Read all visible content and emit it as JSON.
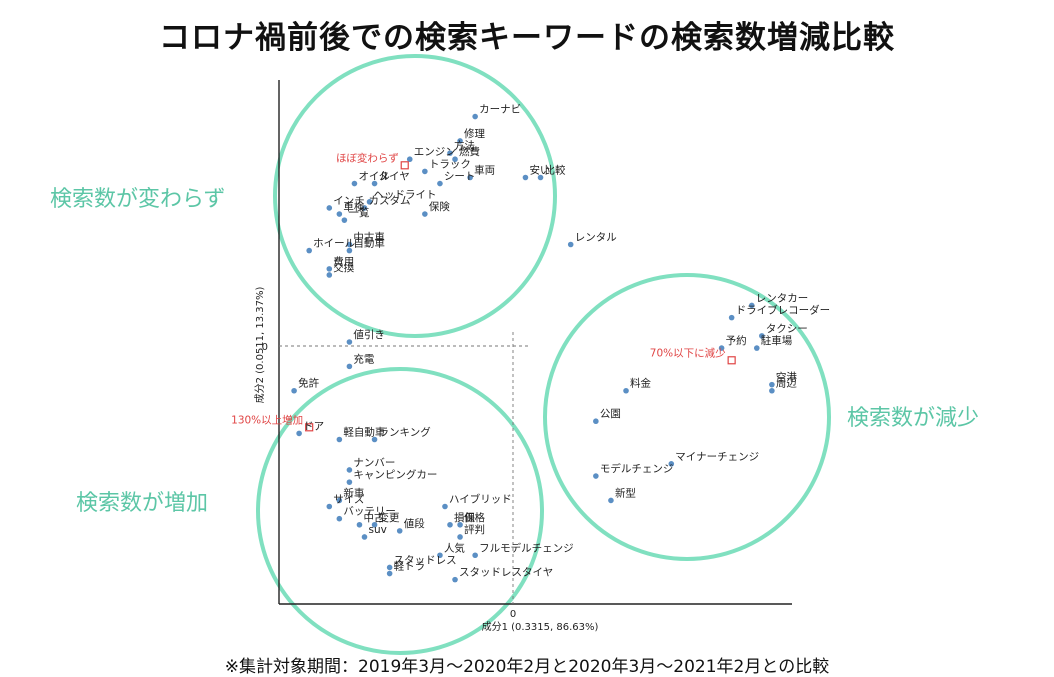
{
  "title": "コロナ禍前後での検索キーワードの検索数増減比較",
  "footnote": "※集計対象期間：2019年3月～2020年2月と2020年3月～2021年2月との比較",
  "chart_data": {
    "type": "scatter",
    "xlabel": "成分1 (0.3315, 86.63%)",
    "ylabel": "成分2 (0.0511, 13.37%)",
    "x_zero_label": "0",
    "y_zero_label": "0",
    "xlim": [
      -0.47,
      0.55
    ],
    "ylim": [
      -0.43,
      0.43
    ],
    "grid": false,
    "points": [
      {
        "label": "カーナビ",
        "x": -0.08,
        "y": 0.37
      },
      {
        "label": "修理",
        "x": -0.11,
        "y": 0.33
      },
      {
        "label": "方法",
        "x": -0.13,
        "y": 0.31
      },
      {
        "label": "燃費",
        "x": -0.12,
        "y": 0.3
      },
      {
        "label": "エンジン",
        "x": -0.21,
        "y": 0.3
      },
      {
        "label": "ほぼ変わらず",
        "x": -0.22,
        "y": 0.29
      },
      {
        "label": "トラック",
        "x": -0.18,
        "y": 0.28
      },
      {
        "label": "車両",
        "x": -0.09,
        "y": 0.27
      },
      {
        "label": "安い",
        "x": 0.02,
        "y": 0.27
      },
      {
        "label": "比較",
        "x": 0.05,
        "y": 0.27
      },
      {
        "label": "オイル",
        "x": -0.32,
        "y": 0.26
      },
      {
        "label": "タイヤ",
        "x": -0.28,
        "y": 0.26
      },
      {
        "label": "シート",
        "x": -0.15,
        "y": 0.26
      },
      {
        "label": "ヘッドライト",
        "x": -0.29,
        "y": 0.23
      },
      {
        "label": "インチ",
        "x": -0.37,
        "y": 0.22
      },
      {
        "label": "カスタム",
        "x": -0.3,
        "y": 0.22
      },
      {
        "label": "保険",
        "x": -0.18,
        "y": 0.21
      },
      {
        "label": "車検",
        "x": -0.35,
        "y": 0.21
      },
      {
        "label": "一覧",
        "x": -0.34,
        "y": 0.2
      },
      {
        "label": "中古車",
        "x": -0.33,
        "y": 0.16
      },
      {
        "label": "レンタル",
        "x": 0.11,
        "y": 0.16
      },
      {
        "label": "ホイール",
        "x": -0.41,
        "y": 0.15
      },
      {
        "label": "自動車",
        "x": -0.33,
        "y": 0.15
      },
      {
        "label": "費用",
        "x": -0.37,
        "y": 0.12
      },
      {
        "label": "交換",
        "x": -0.37,
        "y": 0.11
      },
      {
        "label": "レンタカー",
        "x": 0.47,
        "y": 0.06
      },
      {
        "label": "ドライブレコーダー",
        "x": 0.43,
        "y": 0.04
      },
      {
        "label": "タクシー",
        "x": 0.49,
        "y": 0.01
      },
      {
        "label": "予約",
        "x": 0.41,
        "y": -0.01
      },
      {
        "label": "駐車場",
        "x": 0.48,
        "y": -0.01
      },
      {
        "label": "70%以下に減少",
        "x": 0.43,
        "y": -0.03
      },
      {
        "label": "空港",
        "x": 0.51,
        "y": -0.07
      },
      {
        "label": "周辺",
        "x": 0.51,
        "y": -0.08
      },
      {
        "label": "料金",
        "x": 0.22,
        "y": -0.08
      },
      {
        "label": "公園",
        "x": 0.16,
        "y": -0.13
      },
      {
        "label": "値引き",
        "x": -0.33,
        "y": 0.0
      },
      {
        "label": "充電",
        "x": -0.33,
        "y": -0.04
      },
      {
        "label": "免許",
        "x": -0.44,
        "y": -0.08
      },
      {
        "label": "130%以上増加",
        "x": -0.41,
        "y": -0.14
      },
      {
        "label": "ドア",
        "x": -0.43,
        "y": -0.15
      },
      {
        "label": "ランキング",
        "x": -0.28,
        "y": -0.16
      },
      {
        "label": "軽自動車",
        "x": -0.35,
        "y": -0.16
      },
      {
        "label": "ナンバー",
        "x": -0.33,
        "y": -0.21
      },
      {
        "label": "キャンピングカー",
        "x": -0.33,
        "y": -0.23
      },
      {
        "label": "新車",
        "x": -0.35,
        "y": -0.26
      },
      {
        "label": "サイズ",
        "x": -0.37,
        "y": -0.27
      },
      {
        "label": "ハイブリッド",
        "x": -0.14,
        "y": -0.27
      },
      {
        "label": "バッテリー",
        "x": -0.35,
        "y": -0.29
      },
      {
        "label": "中古",
        "x": -0.31,
        "y": -0.3
      },
      {
        "label": "変更",
        "x": -0.28,
        "y": -0.3
      },
      {
        "label": "損保",
        "x": -0.13,
        "y": -0.3
      },
      {
        "label": "価格",
        "x": -0.11,
        "y": -0.3
      },
      {
        "label": "値段",
        "x": -0.23,
        "y": -0.31
      },
      {
        "label": "評判",
        "x": -0.11,
        "y": -0.32
      },
      {
        "label": "suv",
        "x": -0.3,
        "y": -0.32
      },
      {
        "label": "人気",
        "x": -0.15,
        "y": -0.35
      },
      {
        "label": "フルモデルチェンジ",
        "x": -0.08,
        "y": -0.35
      },
      {
        "label": "スタッドレス",
        "x": -0.25,
        "y": -0.37
      },
      {
        "label": "軽トラ",
        "x": -0.25,
        "y": -0.38
      },
      {
        "label": "スタッドレスタイヤ",
        "x": -0.12,
        "y": -0.39
      },
      {
        "label": "マイナーチェンジ",
        "x": 0.31,
        "y": -0.2
      },
      {
        "label": "モデルチェンジ",
        "x": 0.16,
        "y": -0.22
      },
      {
        "label": "新型",
        "x": 0.19,
        "y": -0.26
      }
    ],
    "groups": [
      {
        "label": "検索数が変わらず"
      },
      {
        "label": "検索数が減少"
      },
      {
        "label": "検索数が増加"
      }
    ],
    "colors": {
      "point": "#5b8fc4",
      "circle": "#80e0c0",
      "group_label": "#5cc6a6",
      "marker": "#e04545"
    }
  }
}
